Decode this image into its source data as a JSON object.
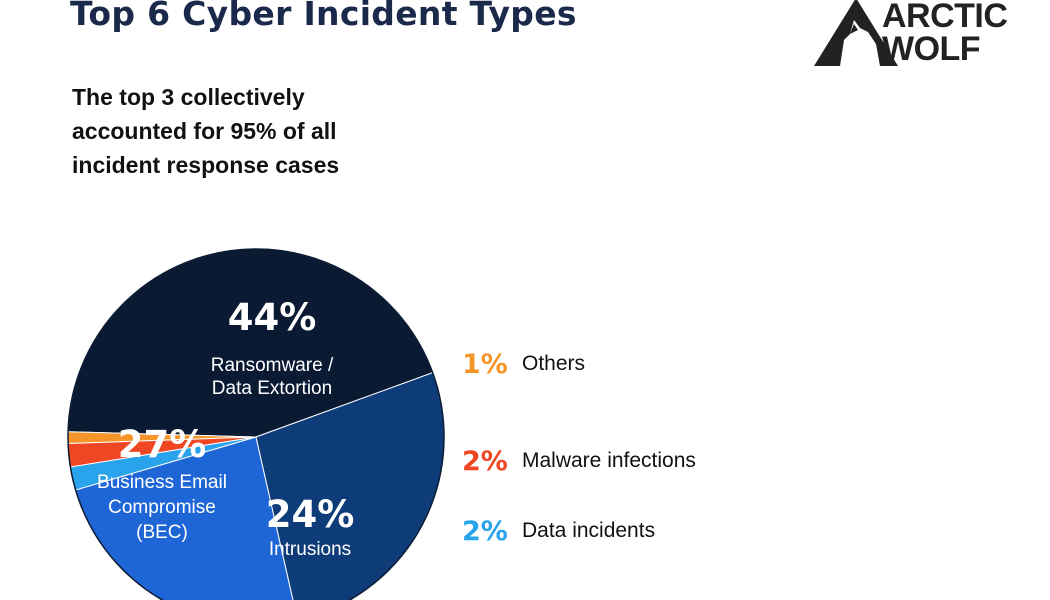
{
  "title": "Top 6 Cyber Incident Types",
  "subtitle": "The top 3 collectively accounted for 95% of all incident response cases",
  "logo": {
    "line1": "ARCTIC",
    "line2": "WOLF",
    "icon": "wolf-icon"
  },
  "chart_data": {
    "type": "pie",
    "slices": [
      {
        "pct_label": "44%",
        "label_lines": [
          "Ransomware /",
          "Data Extortion"
        ],
        "value": 44,
        "color": "#0a1a33"
      },
      {
        "pct_label": "1%",
        "label_lines": [
          "Others"
        ],
        "value": 1,
        "color": "#f5952a"
      },
      {
        "pct_label": "2%",
        "label_lines": [
          "Malware infections"
        ],
        "value": 2,
        "color": "#ef4723"
      },
      {
        "pct_label": "2%",
        "label_lines": [
          "Data incidents"
        ],
        "value": 2,
        "color": "#29a3ec"
      },
      {
        "pct_label": "24%",
        "label_lines": [
          "Intrusions"
        ],
        "value": 24,
        "color": "#1e66d6"
      },
      {
        "pct_label": "27%",
        "label_lines": [
          "Business Email",
          "Compromise",
          "(BEC)"
        ],
        "value": 27,
        "color": "#0e3c79"
      }
    ],
    "legend": [
      {
        "pct": "1%",
        "label": "Others",
        "color": "#f5952a"
      },
      {
        "pct": "2%",
        "label": "Malware infections",
        "color": "#ef4723"
      },
      {
        "pct": "2%",
        "label": "Data incidents",
        "color": "#29a3ec"
      }
    ],
    "legend_position": "right"
  }
}
